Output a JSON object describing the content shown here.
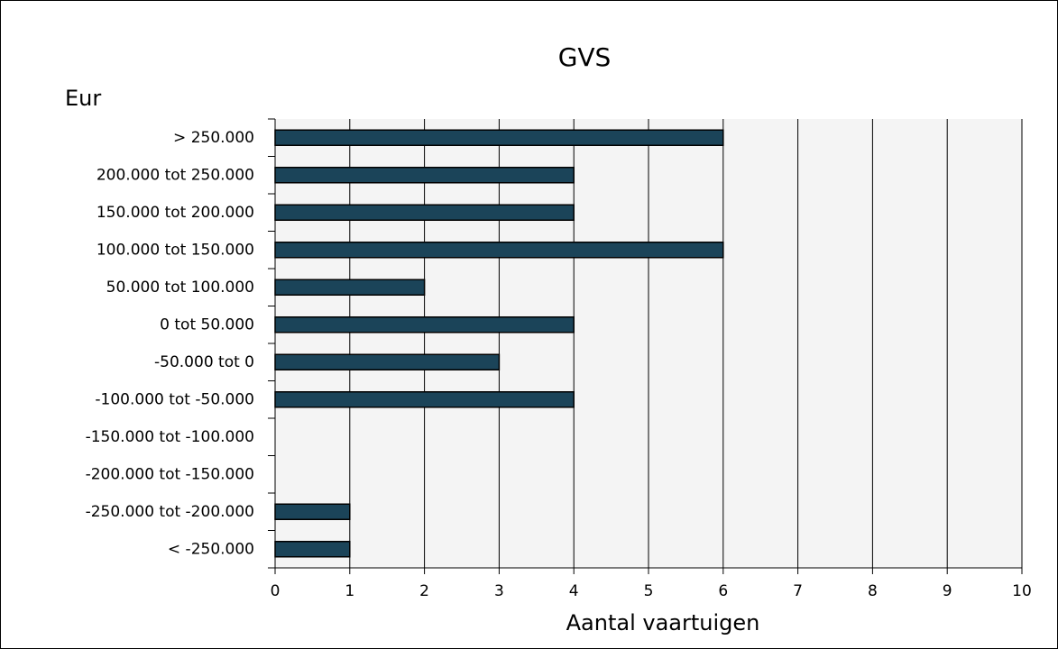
{
  "chart_data": {
    "type": "bar",
    "orientation": "horizontal",
    "title": "GVS",
    "y_label": "Eur",
    "x_label": "Aantal vaartuigen",
    "categories": [
      "> 250.000",
      "200.000 tot 250.000",
      "150.000 tot 200.000",
      "100.000 tot 150.000",
      "50.000 tot 100.000",
      "0 tot 50.000",
      "-50.000 tot 0",
      "-100.000 tot -50.000",
      "-150.000 tot -100.000",
      "-200.000 tot -150.000",
      "-250.000 tot -200.000",
      "< -250.000"
    ],
    "values": [
      6,
      4,
      4,
      6,
      2,
      4,
      3,
      4,
      0,
      0,
      1,
      1
    ],
    "color": "#1b4459",
    "xlim": [
      0,
      10
    ],
    "xticks": [
      0,
      1,
      2,
      3,
      4,
      5,
      6,
      7,
      8,
      9,
      10
    ],
    "grid": true
  }
}
